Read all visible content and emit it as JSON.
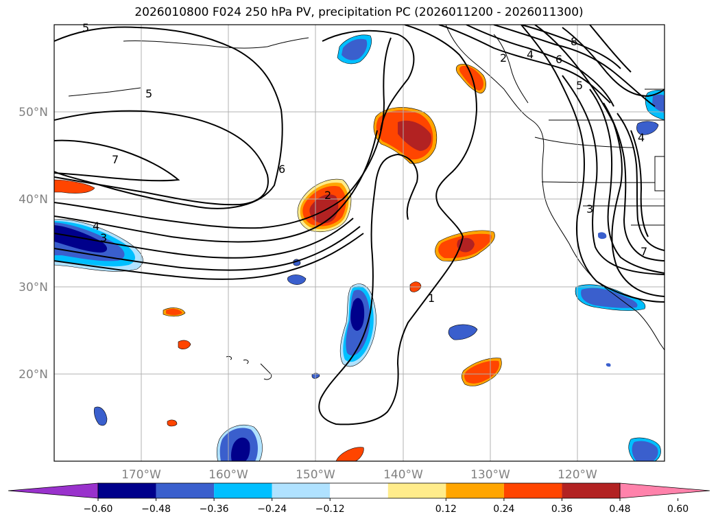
{
  "title": "2026010800 F024 250 hPa PV, precipitation PC (2026011200 - 2026011300)",
  "axes": {
    "lon_labels": [
      "170°W",
      "160°W",
      "150°W",
      "140°W",
      "130°W",
      "120°W"
    ],
    "lat_labels": [
      "50°N",
      "40°N",
      "30°N",
      "20°N"
    ],
    "lon_range": [
      -180,
      -110
    ],
    "lat_range": [
      10,
      60
    ],
    "grid": true
  },
  "colorbar": {
    "tick_labels": [
      "−0.60",
      "−0.48",
      "−0.36",
      "−0.24",
      "−0.12",
      "0.12",
      "0.24",
      "0.36",
      "0.48",
      "0.60"
    ],
    "colors": [
      "#9932cc",
      "#00008b",
      "#3a5fcd",
      "#00bfff",
      "#b0e2ff",
      "#ffffff",
      "#ffec8b",
      "#ffa500",
      "#ff4500",
      "#b22222",
      "#ff82ab"
    ],
    "extend": "both"
  },
  "contour_labels": [
    "5",
    "5",
    "7",
    "6",
    "2",
    "4",
    "3",
    "1",
    "2",
    "4",
    "6",
    "8",
    "5",
    "3",
    "7",
    "4"
  ],
  "colors": {
    "coast": "#000000",
    "grid": "#b0b0b0",
    "contour": "#000000"
  }
}
